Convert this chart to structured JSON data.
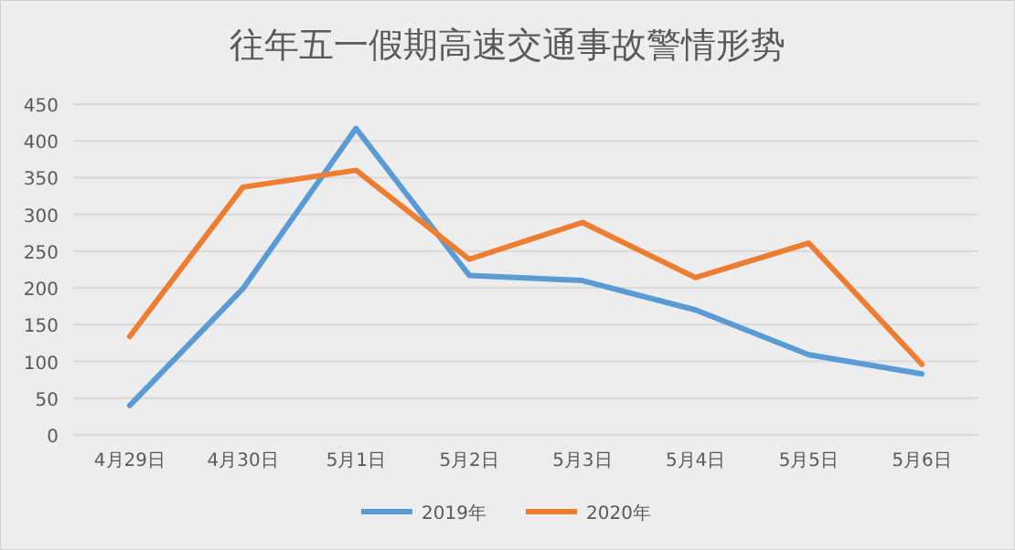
{
  "chart_data": {
    "type": "line",
    "title": "往年五一假期高速交通事故警情形势",
    "categories": [
      "4月29日",
      "4月30日",
      "5月1日",
      "5月2日",
      "5月3日",
      "5月4日",
      "5月5日",
      "5月6日"
    ],
    "series": [
      {
        "name": "2019年",
        "color": "#5b9bd5",
        "values": [
          40,
          199,
          417,
          217,
          210,
          170,
          109,
          83
        ]
      },
      {
        "name": "2020年",
        "color": "#ed7d31",
        "values": [
          134,
          337,
          360,
          239,
          289,
          214,
          261,
          96
        ]
      }
    ],
    "ylim": [
      0,
      450
    ],
    "yticks": [
      0,
      50,
      100,
      150,
      200,
      250,
      300,
      350,
      400,
      450
    ],
    "grid": "y",
    "legend": "bottom",
    "marker": "none",
    "line_style": "solid"
  }
}
